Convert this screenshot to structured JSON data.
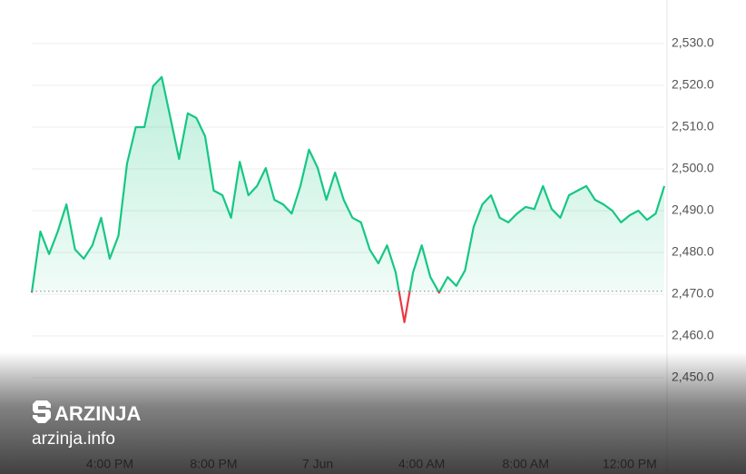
{
  "chart_data": {
    "type": "line",
    "values": [
      2470.4,
      2485,
      2479.6,
      2485,
      2491.5,
      2480.7,
      2478.5,
      2481.7,
      2488.3,
      2478.5,
      2484,
      2501.3,
      2510,
      2510,
      2519.8,
      2522,
      2512.2,
      2502.4,
      2513.3,
      2512.2,
      2507.8,
      2494.8,
      2493.7,
      2488.3,
      2501.7,
      2493.7,
      2495.9,
      2500.2,
      2492.6,
      2491.5,
      2489.3,
      2495.9,
      2504.6,
      2500.2,
      2492.6,
      2499.1,
      2492.6,
      2488.3,
      2487.2,
      2480.7,
      2477.4,
      2481.7,
      2475.2,
      2463.3,
      2475.2,
      2481.7,
      2474.1,
      2470.4,
      2474.1,
      2472,
      2475.7,
      2486.1,
      2491.5,
      2493.7,
      2488.3,
      2487.2,
      2489.3,
      2490.9,
      2490.4,
      2495.9,
      2490.4,
      2488.3,
      2493.7,
      2494.8,
      2495.9,
      2492.6,
      2491.5,
      2490,
      2487.2,
      2488.9,
      2490,
      2487.8,
      2489.3,
      2495.9
    ],
    "baseline": 2470.7,
    "color": "#16c784",
    "down_color": "#ea3943",
    "ylim": [
      2440,
      2540
    ],
    "yticks": [
      {
        "value": 2450,
        "label": "2,450.0"
      },
      {
        "value": 2460,
        "label": "2,460.0"
      },
      {
        "value": 2470,
        "label": "2,470.0"
      },
      {
        "value": 2480,
        "label": "2,480.0"
      },
      {
        "value": 2490,
        "label": "2,490.0"
      },
      {
        "value": 2500,
        "label": "2,500.0"
      },
      {
        "value": 2510,
        "label": "2,510.0"
      },
      {
        "value": 2520,
        "label": "2,520.0"
      },
      {
        "value": 2530,
        "label": "2,530.0"
      }
    ],
    "xticks": [
      {
        "value": 9,
        "label": "4:00 PM"
      },
      {
        "value": 21,
        "label": "8:00 PM"
      },
      {
        "value": 33,
        "label": "7 Jun"
      },
      {
        "value": 45,
        "label": "4:00 AM"
      },
      {
        "value": 57,
        "label": "8:00 AM"
      },
      {
        "value": 69,
        "label": "12:00 PM"
      }
    ],
    "grid": true
  },
  "watermark": {
    "brand": "ARZINJA",
    "url": "arzinja.info"
  }
}
